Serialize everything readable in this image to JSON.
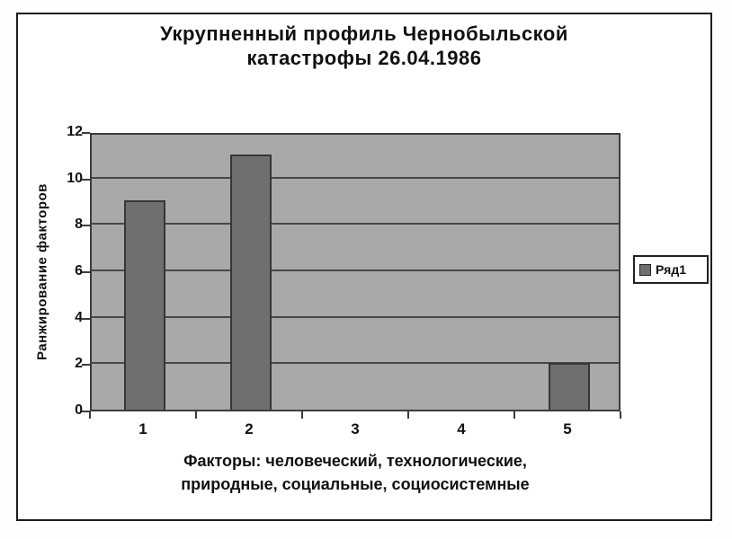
{
  "chart_data": {
    "type": "bar",
    "title": "Укрупненный профиль Чернобыльской катастрофы 26.04.1986",
    "title_lines": [
      "Укрупненный профиль Чернобыльской",
      "катастрофы 26.04.1986"
    ],
    "xlabel": "Факторы: человеческий, технологические, природные, социальные, социосистемные",
    "xlabel_lines": [
      "Факторы: человеческий, технологические,",
      "природные, социальные, социосистемные"
    ],
    "ylabel": "Ранжирование факторов",
    "categories": [
      "1",
      "2",
      "3",
      "4",
      "5"
    ],
    "series": [
      {
        "name": "Ряд1",
        "values": [
          9,
          11,
          0,
          0,
          2
        ]
      }
    ],
    "ylim": [
      0,
      12
    ],
    "yticks": [
      0,
      2,
      4,
      6,
      8,
      10,
      12
    ],
    "grid": true,
    "legend_position": "right",
    "colors": {
      "plot_bg": "#a9a9a9",
      "bar_fill": "#6f6f6f",
      "bar_border": "#363636",
      "gridline": "#474747",
      "frame_border": "#1c1c1c",
      "text": "#111111",
      "background": "#ffffff"
    }
  }
}
